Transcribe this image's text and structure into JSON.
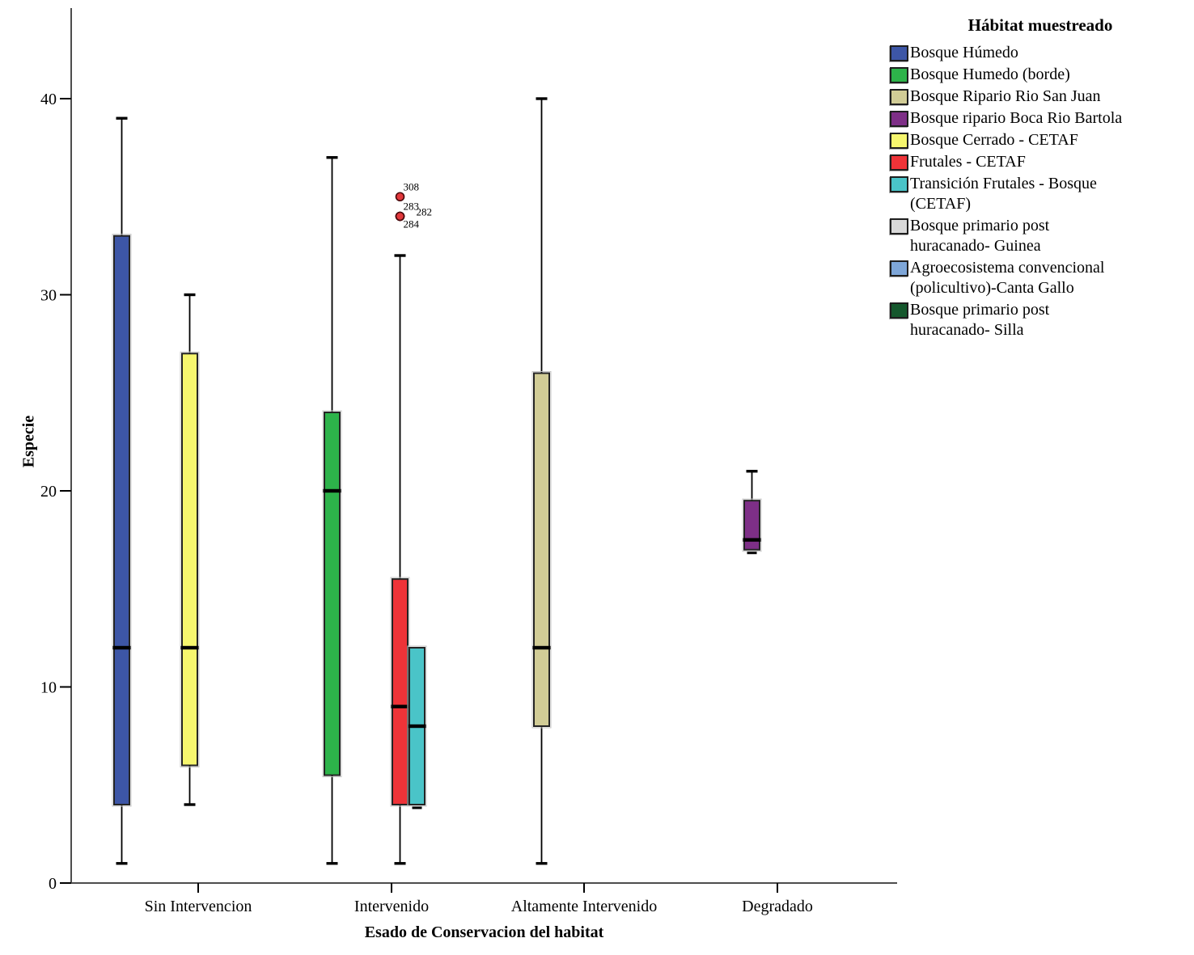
{
  "chart_data": {
    "type": "boxplot",
    "title": "",
    "xlabel": "Esado de Conservacion del habitat",
    "ylabel": "Especie",
    "ylim": [
      0,
      44.6
    ],
    "yticks": [
      0,
      10,
      20,
      30,
      40
    ],
    "grid": false,
    "legend_title": "Hábitat muestreado",
    "legend_position": "top-right",
    "categories": [
      "Sin Intervencion",
      "Intervenido",
      "Altamente Intervenido",
      "Degradado"
    ],
    "outlier_color": "#E2383C",
    "outlier_stroke": "#47090C",
    "groups": [
      {
        "label_lines": [
          "Bosque Húmedo"
        ],
        "color": "#3D56A6"
      },
      {
        "label_lines": [
          "Bosque Humedo (borde)"
        ],
        "color": "#2DB34A"
      },
      {
        "label_lines": [
          "Bosque Ripario Rio San Juan"
        ],
        "color": "#D1CC96"
      },
      {
        "label_lines": [
          "Bosque ripario Boca Rio Bartola"
        ],
        "color": "#7E2F87"
      },
      {
        "label_lines": [
          "Bosque Cerrado - CETAF"
        ],
        "color": "#F6F66E"
      },
      {
        "label_lines": [
          "Frutales - CETAF"
        ],
        "color": "#EE3338"
      },
      {
        "label_lines": [
          "Transición Frutales - Bosque",
          "(CETAF)"
        ],
        "color": "#4AC4C8"
      },
      {
        "label_lines": [
          "Bosque primario post",
          "huracanado- Guinea"
        ],
        "color": "#D9D9D9"
      },
      {
        "label_lines": [
          "Agroecosistema convencional",
          "(policultivo)-Canta Gallo"
        ],
        "color": "#7EA6D8"
      },
      {
        "label_lines": [
          "Bosque primario post",
          "huracanado- Silla"
        ],
        "color": "#15582D"
      }
    ],
    "boxes": [
      {
        "category_index": 0,
        "group_index": 0,
        "group": "Bosque Húmedo",
        "whisker_low": 1,
        "q1": 4,
        "median": 12,
        "q3": 33,
        "whisker_high": 39,
        "outliers": []
      },
      {
        "category_index": 0,
        "group_index": 4,
        "group": "Bosque Cerrado - CETAF",
        "whisker_low": 4,
        "q1": 6,
        "median": 12,
        "q3": 27,
        "whisker_high": 30,
        "outliers": []
      },
      {
        "category_index": 1,
        "group_index": 1,
        "group": "Bosque Humedo (borde)",
        "whisker_low": 1,
        "q1": 5.5,
        "median": 20,
        "q3": 24,
        "whisker_high": 37,
        "outliers": []
      },
      {
        "category_index": 1,
        "group_index": 5,
        "group": "Frutales - CETAF",
        "whisker_low": 1,
        "q1": 4,
        "median": 9,
        "q3": 15.5,
        "whisker_high": 32,
        "outliers": [
          {
            "value": 35,
            "label": "308"
          },
          {
            "value": 34,
            "label": "283"
          },
          {
            "value": 34,
            "label": "282"
          },
          {
            "value": 34,
            "label": "284"
          }
        ]
      },
      {
        "category_index": 1,
        "group_index": 6,
        "group": "Transición Frutales - Bosque (CETAF)",
        "whisker_low": 4,
        "q1": 4,
        "median": 8,
        "q3": 12,
        "whisker_high": 12,
        "outliers": []
      },
      {
        "category_index": 2,
        "group_index": 2,
        "group": "Bosque Ripario Rio San Juan",
        "whisker_low": 1,
        "q1": 8,
        "median": 12,
        "q3": 26,
        "whisker_high": 40,
        "outliers": []
      },
      {
        "category_index": 3,
        "group_index": 3,
        "group": "Bosque ripario Boca Rio Bartola",
        "whisker_low": 17,
        "q1": 17,
        "median": 17.5,
        "q3": 19.5,
        "whisker_high": 21,
        "outliers": []
      }
    ]
  }
}
